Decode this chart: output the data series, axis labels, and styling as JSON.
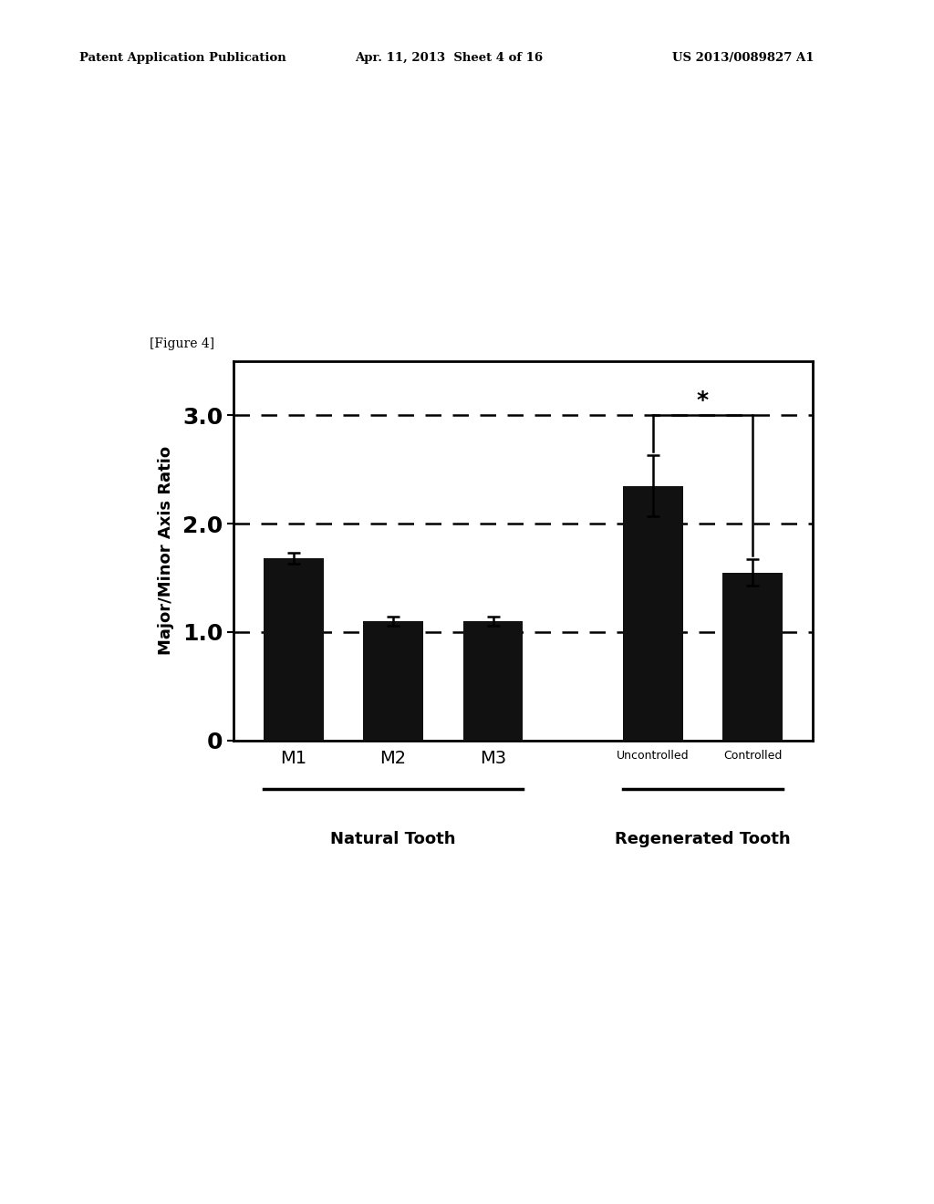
{
  "categories": [
    "M1",
    "M2",
    "M3",
    "Uncontrolled",
    "Controlled"
  ],
  "values": [
    1.68,
    1.1,
    1.1,
    2.35,
    1.55
  ],
  "errors": [
    0.05,
    0.04,
    0.04,
    0.28,
    0.12
  ],
  "bar_color": "#111111",
  "bar_width": 0.6,
  "ylabel": "Major/Minor Axis Ratio",
  "yticks": [
    0,
    1.0,
    2.0,
    3.0
  ],
  "ylim": [
    0,
    3.5
  ],
  "dashed_lines": [
    1.0,
    2.0,
    3.0
  ],
  "natural_tooth_label": "Natural Tooth",
  "regenerated_tooth_label": "Regenerated Tooth",
  "figure_label": "[Figure 4]",
  "header_left": "Patent Application Publication",
  "header_mid": "Apr. 11, 2013  Sheet 4 of 16",
  "header_right": "US 2013/0089827 A1",
  "significance_star": "*",
  "background_color": "#ffffff",
  "font_color": "#000000",
  "x_positions": [
    0,
    1,
    2,
    3.6,
    4.6
  ],
  "xlim": [
    -0.6,
    5.2
  ]
}
